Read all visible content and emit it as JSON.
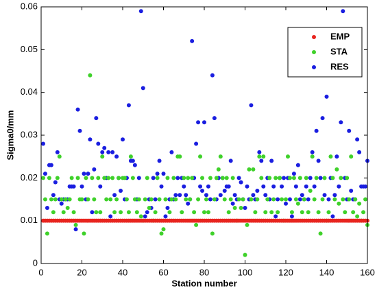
{
  "chart_data": {
    "type": "scatter",
    "x_label": "Station number",
    "y_label": "Sigma0/mm",
    "x": [
      1,
      2,
      3,
      4,
      5,
      6,
      7,
      8,
      9,
      10,
      11,
      12,
      13,
      14,
      15,
      16,
      17,
      18,
      19,
      20,
      21,
      22,
      23,
      24,
      25,
      26,
      27,
      28,
      29,
      30,
      31,
      32,
      33,
      34,
      35,
      36,
      37,
      38,
      39,
      40,
      41,
      42,
      43,
      44,
      45,
      46,
      47,
      48,
      49,
      50,
      51,
      52,
      53,
      54,
      55,
      56,
      57,
      58,
      59,
      60,
      61,
      62,
      63,
      64,
      65,
      66,
      67,
      68,
      69,
      70,
      71,
      72,
      73,
      74,
      75,
      76,
      77,
      78,
      79,
      80,
      81,
      82,
      83,
      84,
      85,
      86,
      87,
      88,
      89,
      90,
      91,
      92,
      93,
      94,
      95,
      96,
      97,
      98,
      99,
      100,
      101,
      102,
      103,
      104,
      105,
      106,
      107,
      108,
      109,
      110,
      111,
      112,
      113,
      114,
      115,
      116,
      117,
      118,
      119,
      120,
      121,
      122,
      123,
      124,
      125,
      126,
      127,
      128,
      129,
      130,
      131,
      132,
      133,
      134,
      135,
      136,
      137,
      138,
      139,
      140,
      141,
      142,
      143,
      144,
      145,
      146,
      147,
      148,
      149,
      150,
      151,
      152,
      153,
      154,
      155,
      156,
      157,
      158,
      159,
      160
    ],
    "series": [
      {
        "name": "EMP",
        "color": "#e8251f",
        "values": [
          0.01,
          0.01,
          0.01,
          0.01,
          0.01,
          0.01,
          0.01,
          0.01,
          0.01,
          0.01,
          0.01,
          0.01,
          0.01,
          0.01,
          0.01,
          0.01,
          0.01,
          0.01,
          0.01,
          0.01,
          0.01,
          0.01,
          0.01,
          0.01,
          0.01,
          0.01,
          0.01,
          0.01,
          0.01,
          0.01,
          0.01,
          0.01,
          0.01,
          0.01,
          0.01,
          0.01,
          0.01,
          0.01,
          0.01,
          0.01,
          0.01,
          0.01,
          0.01,
          0.01,
          0.01,
          0.01,
          0.01,
          0.01,
          0.01,
          0.01,
          0.01,
          0.01,
          0.01,
          0.01,
          0.01,
          0.01,
          0.01,
          0.01,
          0.01,
          0.01,
          0.01,
          0.01,
          0.01,
          0.01,
          0.01,
          0.01,
          0.01,
          0.01,
          0.01,
          0.01,
          0.01,
          0.01,
          0.01,
          0.01,
          0.01,
          0.01,
          0.01,
          0.01,
          0.01,
          0.01,
          0.01,
          0.01,
          0.01,
          0.01,
          0.01,
          0.01,
          0.01,
          0.01,
          0.01,
          0.01,
          0.01,
          0.01,
          0.01,
          0.01,
          0.01,
          0.01,
          0.01,
          0.01,
          0.01,
          0.01,
          0.01,
          0.01,
          0.01,
          0.01,
          0.01,
          0.01,
          0.01,
          0.01,
          0.01,
          0.01,
          0.01,
          0.01,
          0.01,
          0.01,
          0.01,
          0.01,
          0.01,
          0.01,
          0.01,
          0.01,
          0.01,
          0.01,
          0.01,
          0.01,
          0.01,
          0.01,
          0.01,
          0.01,
          0.01,
          0.01,
          0.01,
          0.01,
          0.01,
          0.01,
          0.01,
          0.01,
          0.01,
          0.01,
          0.01,
          0.01,
          0.01,
          0.01,
          0.01,
          0.01,
          0.01,
          0.01,
          0.01,
          0.01,
          0.01,
          0.01,
          0.01,
          0.01,
          0.01,
          0.01,
          0.01,
          0.01,
          0.01,
          0.01,
          0.01,
          0.01
        ]
      },
      {
        "name": "STA",
        "color": "#3fd12a",
        "values": [
          0.02,
          0.015,
          0.007,
          0.02,
          0.015,
          0.012,
          0.015,
          0.02,
          0.025,
          0.015,
          0.012,
          0.015,
          0.013,
          0.015,
          0.02,
          0.012,
          0.009,
          0.02,
          0.015,
          0.015,
          0.007,
          0.02,
          0.015,
          0.044,
          0.02,
          0.015,
          0.012,
          0.02,
          0.012,
          0.025,
          0.02,
          0.015,
          0.02,
          0.015,
          0.02,
          0.012,
          0.015,
          0.02,
          0.012,
          0.02,
          0.02,
          0.015,
          0.012,
          0.025,
          0.02,
          0.015,
          0.012,
          0.015,
          0.011,
          0.01,
          0.015,
          0.02,
          0.013,
          0.015,
          0.01,
          0.012,
          0.02,
          0.015,
          0.007,
          0.008,
          0.015,
          0.02,
          0.012,
          0.015,
          0.02,
          0.015,
          0.025,
          0.025,
          0.012,
          0.02,
          0.015,
          0.02,
          0.015,
          0.02,
          0.012,
          0.009,
          0.015,
          0.025,
          0.02,
          0.012,
          0.015,
          0.012,
          0.02,
          0.007,
          0.015,
          0.02,
          0.022,
          0.025,
          0.02,
          0.015,
          0.02,
          0.012,
          0.015,
          0.02,
          0.013,
          0.01,
          0.015,
          0.013,
          0.015,
          0.002,
          0.009,
          0.022,
          0.015,
          0.022,
          0.012,
          0.015,
          0.025,
          0.02,
          0.025,
          0.012,
          0.015,
          0.02,
          0.012,
          0.015,
          0.02,
          0.012,
          0.02,
          0.015,
          0.01,
          0.015,
          0.025,
          0.02,
          0.012,
          0.02,
          0.015,
          0.014,
          0.02,
          0.012,
          0.015,
          0.02,
          0.012,
          0.017,
          0.025,
          0.015,
          0.02,
          0.012,
          0.007,
          0.015,
          0.02,
          0.01,
          0.012,
          0.025,
          0.02,
          0.015,
          0.022,
          0.014,
          0.02,
          0.015,
          0.012,
          0.02,
          0.015,
          0.025,
          0.012,
          0.015,
          0.011,
          0.014,
          0.01,
          0.012,
          0.015,
          0.009
        ]
      },
      {
        "name": "RES",
        "color": "#1a1ee0",
        "values": [
          0.028,
          0.021,
          0.013,
          0.023,
          0.023,
          0.016,
          0.019,
          0.026,
          0.015,
          0.014,
          0.015,
          0.015,
          0.015,
          0.018,
          0.018,
          0.018,
          0.008,
          0.036,
          0.031,
          0.018,
          0.021,
          0.015,
          0.021,
          0.029,
          0.012,
          0.022,
          0.034,
          0.028,
          0.018,
          0.026,
          0.027,
          0.02,
          0.026,
          0.011,
          0.026,
          0.016,
          0.025,
          0.02,
          0.017,
          0.029,
          0.015,
          0.02,
          0.037,
          0.024,
          0.024,
          0.023,
          0.015,
          0.02,
          0.059,
          0.041,
          0.011,
          0.012,
          0.015,
          0.013,
          0.02,
          0.015,
          0.021,
          0.024,
          0.018,
          0.021,
          0.011,
          0.013,
          0.015,
          0.026,
          0.015,
          0.016,
          0.02,
          0.016,
          0.02,
          0.018,
          0.016,
          0.014,
          0.015,
          0.052,
          0.02,
          0.028,
          0.033,
          0.018,
          0.017,
          0.033,
          0.016,
          0.018,
          0.015,
          0.044,
          0.034,
          0.015,
          0.02,
          0.016,
          0.02,
          0.017,
          0.018,
          0.018,
          0.024,
          0.014,
          0.016,
          0.015,
          0.02,
          0.019,
          0.015,
          0.013,
          0.018,
          0.015,
          0.037,
          0.016,
          0.015,
          0.017,
          0.026,
          0.024,
          0.018,
          0.016,
          0.02,
          0.015,
          0.024,
          0.018,
          0.011,
          0.015,
          0.02,
          0.018,
          0.02,
          0.014,
          0.02,
          0.015,
          0.011,
          0.021,
          0.018,
          0.023,
          0.015,
          0.016,
          0.015,
          0.018,
          0.015,
          0.02,
          0.026,
          0.018,
          0.031,
          0.024,
          0.02,
          0.034,
          0.016,
          0.039,
          0.015,
          0.02,
          0.011,
          0.016,
          0.025,
          0.018,
          0.033,
          0.059,
          0.02,
          0.015,
          0.031,
          0.017,
          0.015,
          0.015,
          0.029,
          0.026,
          0.018,
          0.018,
          0.018,
          0.024
        ]
      }
    ],
    "xlim": [
      0,
      160
    ],
    "xticks": [
      0,
      20,
      40,
      60,
      80,
      100,
      120,
      140,
      160
    ],
    "ylim": [
      0,
      0.06
    ],
    "yticks": [
      0,
      0.01,
      0.02,
      0.03,
      0.04,
      0.05,
      0.06
    ],
    "grid": false,
    "legend": "upper right"
  }
}
